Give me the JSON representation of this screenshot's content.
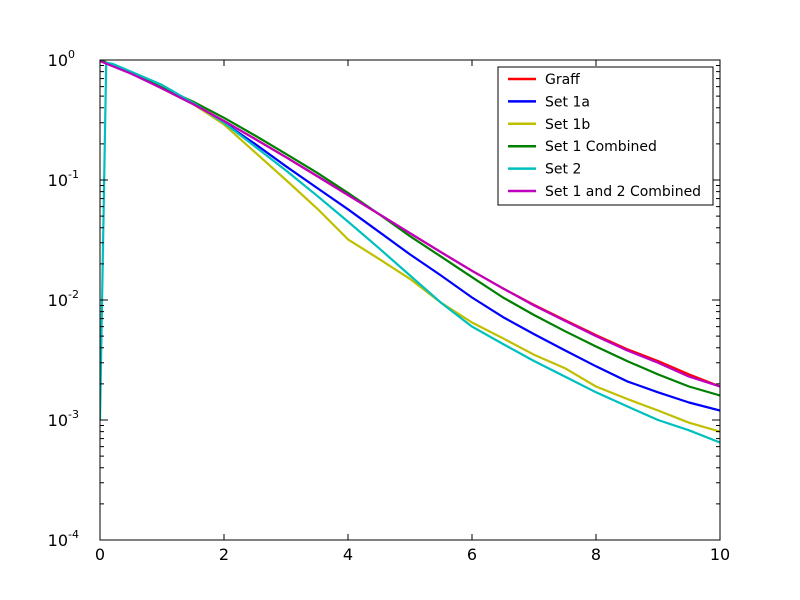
{
  "chart_data": {
    "type": "line",
    "title": "",
    "xlabel": "",
    "ylabel": "",
    "xlim": [
      0,
      10
    ],
    "ylim": [
      0.0001,
      1
    ],
    "yscale": "log",
    "grid": false,
    "legend_position": "top-right",
    "x_ticks": [
      {
        "value": 0,
        "label": "0"
      },
      {
        "value": 2,
        "label": "2"
      },
      {
        "value": 4,
        "label": "4"
      },
      {
        "value": 6,
        "label": "6"
      },
      {
        "value": 8,
        "label": "8"
      },
      {
        "value": 10,
        "label": "10"
      }
    ],
    "y_ticks": [
      {
        "value": 1,
        "base": "10",
        "exp": "0"
      },
      {
        "value": 0.1,
        "base": "10",
        "exp": "-1"
      },
      {
        "value": 0.01,
        "base": "10",
        "exp": "-2"
      },
      {
        "value": 0.001,
        "base": "10",
        "exp": "-3"
      },
      {
        "value": 0.0001,
        "base": "10",
        "exp": "-4"
      }
    ],
    "series": [
      {
        "name": "Graff",
        "color": "#ff0000",
        "x": [
          0.0,
          0.5,
          1.0,
          1.5,
          2.0,
          2.5,
          3.0,
          3.5,
          4.0,
          4.5,
          5.0,
          5.5,
          6.0,
          6.5,
          7.0,
          7.5,
          8.0,
          8.5,
          9.0,
          9.5,
          10.0
        ],
        "y": [
          1.0,
          0.78,
          0.58,
          0.43,
          0.31,
          0.22,
          0.155,
          0.108,
          0.075,
          0.052,
          0.036,
          0.025,
          0.0175,
          0.0125,
          0.0091,
          0.0068,
          0.0051,
          0.0039,
          0.0031,
          0.0024,
          0.0019
        ]
      },
      {
        "name": "Set 1a",
        "color": "#0000ff",
        "x": [
          0.0,
          0.5,
          1.0,
          1.5,
          2.0,
          2.5,
          3.0,
          3.5,
          4.0,
          4.5,
          5.0,
          5.5,
          6.0,
          6.5,
          7.0,
          7.5,
          8.0,
          8.5,
          9.0,
          9.5,
          10.0
        ],
        "y": [
          1.0,
          0.78,
          0.58,
          0.43,
          0.3,
          0.2,
          0.13,
          0.086,
          0.057,
          0.037,
          0.024,
          0.016,
          0.0105,
          0.0072,
          0.0052,
          0.0038,
          0.0028,
          0.0021,
          0.0017,
          0.0014,
          0.0012
        ]
      },
      {
        "name": "Set 1b",
        "color": "#bfbf00",
        "x": [
          0.0,
          0.5,
          1.0,
          1.5,
          2.0,
          2.5,
          3.0,
          3.5,
          4.0,
          4.5,
          5.0,
          5.5,
          6.0,
          6.5,
          7.0,
          7.5,
          8.0,
          8.5,
          9.0,
          9.5,
          10.0
        ],
        "y": [
          1.0,
          0.78,
          0.58,
          0.43,
          0.29,
          0.17,
          0.1,
          0.058,
          0.032,
          0.022,
          0.015,
          0.0095,
          0.0065,
          0.0048,
          0.0035,
          0.0027,
          0.0019,
          0.0015,
          0.0012,
          0.00095,
          0.0008
        ]
      },
      {
        "name": "Set 1 Combined",
        "color": "#008000",
        "x": [
          0.0,
          0.5,
          1.0,
          1.5,
          2.0,
          2.5,
          3.0,
          3.5,
          4.0,
          4.5,
          5.0,
          5.5,
          6.0,
          6.5,
          7.0,
          7.5,
          8.0,
          8.5,
          9.0,
          9.5,
          10.0
        ],
        "y": [
          1.0,
          0.78,
          0.59,
          0.45,
          0.33,
          0.235,
          0.165,
          0.115,
          0.078,
          0.052,
          0.034,
          0.023,
          0.0155,
          0.0105,
          0.0075,
          0.0055,
          0.0041,
          0.0031,
          0.0024,
          0.0019,
          0.0016
        ]
      },
      {
        "name": "Set 2",
        "color": "#00bfbf",
        "x": [
          0.0,
          0.1,
          0.2,
          0.5,
          1.0,
          1.5,
          2.0,
          2.5,
          3.0,
          3.5,
          4.0,
          4.5,
          5.0,
          5.5,
          6.0,
          6.5,
          7.0,
          7.5,
          8.0,
          8.5,
          9.0,
          9.5,
          10.0
        ],
        "y": [
          0.001,
          0.95,
          0.93,
          0.8,
          0.62,
          0.44,
          0.3,
          0.19,
          0.12,
          0.074,
          0.045,
          0.027,
          0.016,
          0.0095,
          0.006,
          0.0043,
          0.0031,
          0.0023,
          0.0017,
          0.0013,
          0.001,
          0.00082,
          0.00065
        ]
      },
      {
        "name": "Set 1 and 2 Combined",
        "color": "#bf00bf",
        "x": [
          0.0,
          0.5,
          1.0,
          1.5,
          2.0,
          2.5,
          3.0,
          3.5,
          4.0,
          4.5,
          5.0,
          5.5,
          6.0,
          6.5,
          7.0,
          7.5,
          8.0,
          8.5,
          9.0,
          9.5,
          10.0
        ],
        "y": [
          0.98,
          0.77,
          0.58,
          0.43,
          0.31,
          0.22,
          0.155,
          0.108,
          0.075,
          0.052,
          0.036,
          0.025,
          0.0175,
          0.0125,
          0.009,
          0.0067,
          0.005,
          0.0038,
          0.003,
          0.0023,
          0.0019
        ]
      }
    ]
  }
}
